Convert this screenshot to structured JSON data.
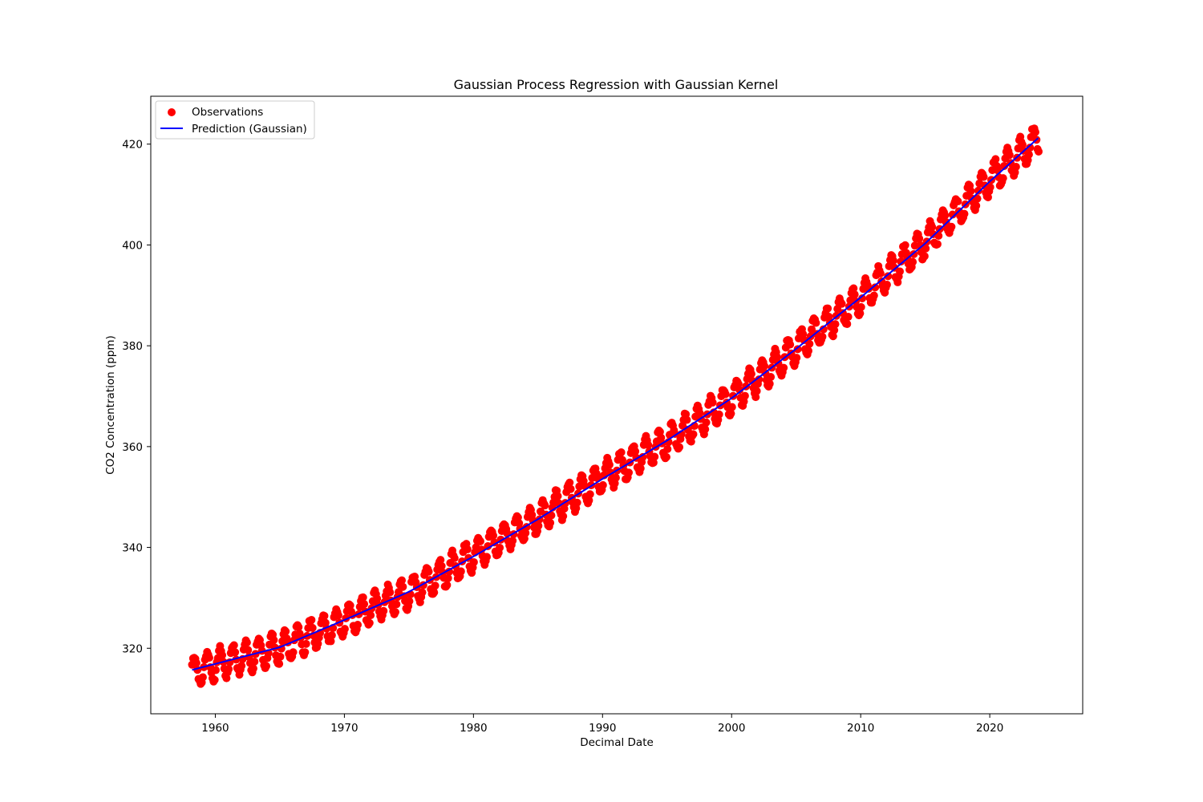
{
  "chart_data": {
    "type": "scatter",
    "title": "Gaussian Process Regression with Gaussian Kernel",
    "xlabel": "Decimal Date",
    "ylabel": "CO2 Concentration (ppm)",
    "xlim": [
      1955.0,
      2027.2
    ],
    "ylim": [
      307.0,
      429.5
    ],
    "x_ticks": [
      1960,
      1970,
      1980,
      1990,
      2000,
      2010,
      2020
    ],
    "y_ticks": [
      320,
      340,
      360,
      380,
      400,
      420
    ],
    "grid": false,
    "legend_position": "top-left",
    "observations_range": {
      "x_start": 1958.2,
      "x_end": 2023.75,
      "samples_per_year": 12
    },
    "series": [
      {
        "name": "Observations",
        "kind": "scatter",
        "color": "#ff0000",
        "trend_points": {
          "x": [
            1958.2,
            1960,
            1965,
            1970,
            1975,
            1980,
            1985,
            1990,
            1995,
            2000,
            2005,
            2010,
            2015,
            2020,
            2023.75
          ],
          "y": [
            315.3,
            316.8,
            320.0,
            325.5,
            331.0,
            338.5,
            345.8,
            354.0,
            361.0,
            369.5,
            379.5,
            389.5,
            400.5,
            413.0,
            421.0
          ]
        },
        "seasonal_amplitude_ppm": 3.0
      },
      {
        "name": "Prediction (Gaussian)",
        "kind": "line",
        "color": "#0000ff",
        "x": [
          1958.2,
          1960,
          1965,
          1970,
          1975,
          1980,
          1985,
          1990,
          1995,
          2000,
          2005,
          2010,
          2015,
          2020,
          2023.75
        ],
        "y": [
          315.7,
          316.9,
          320.2,
          325.6,
          331.2,
          338.2,
          345.6,
          353.6,
          361.2,
          369.6,
          379.4,
          389.6,
          400.3,
          412.6,
          421.2
        ]
      }
    ]
  }
}
